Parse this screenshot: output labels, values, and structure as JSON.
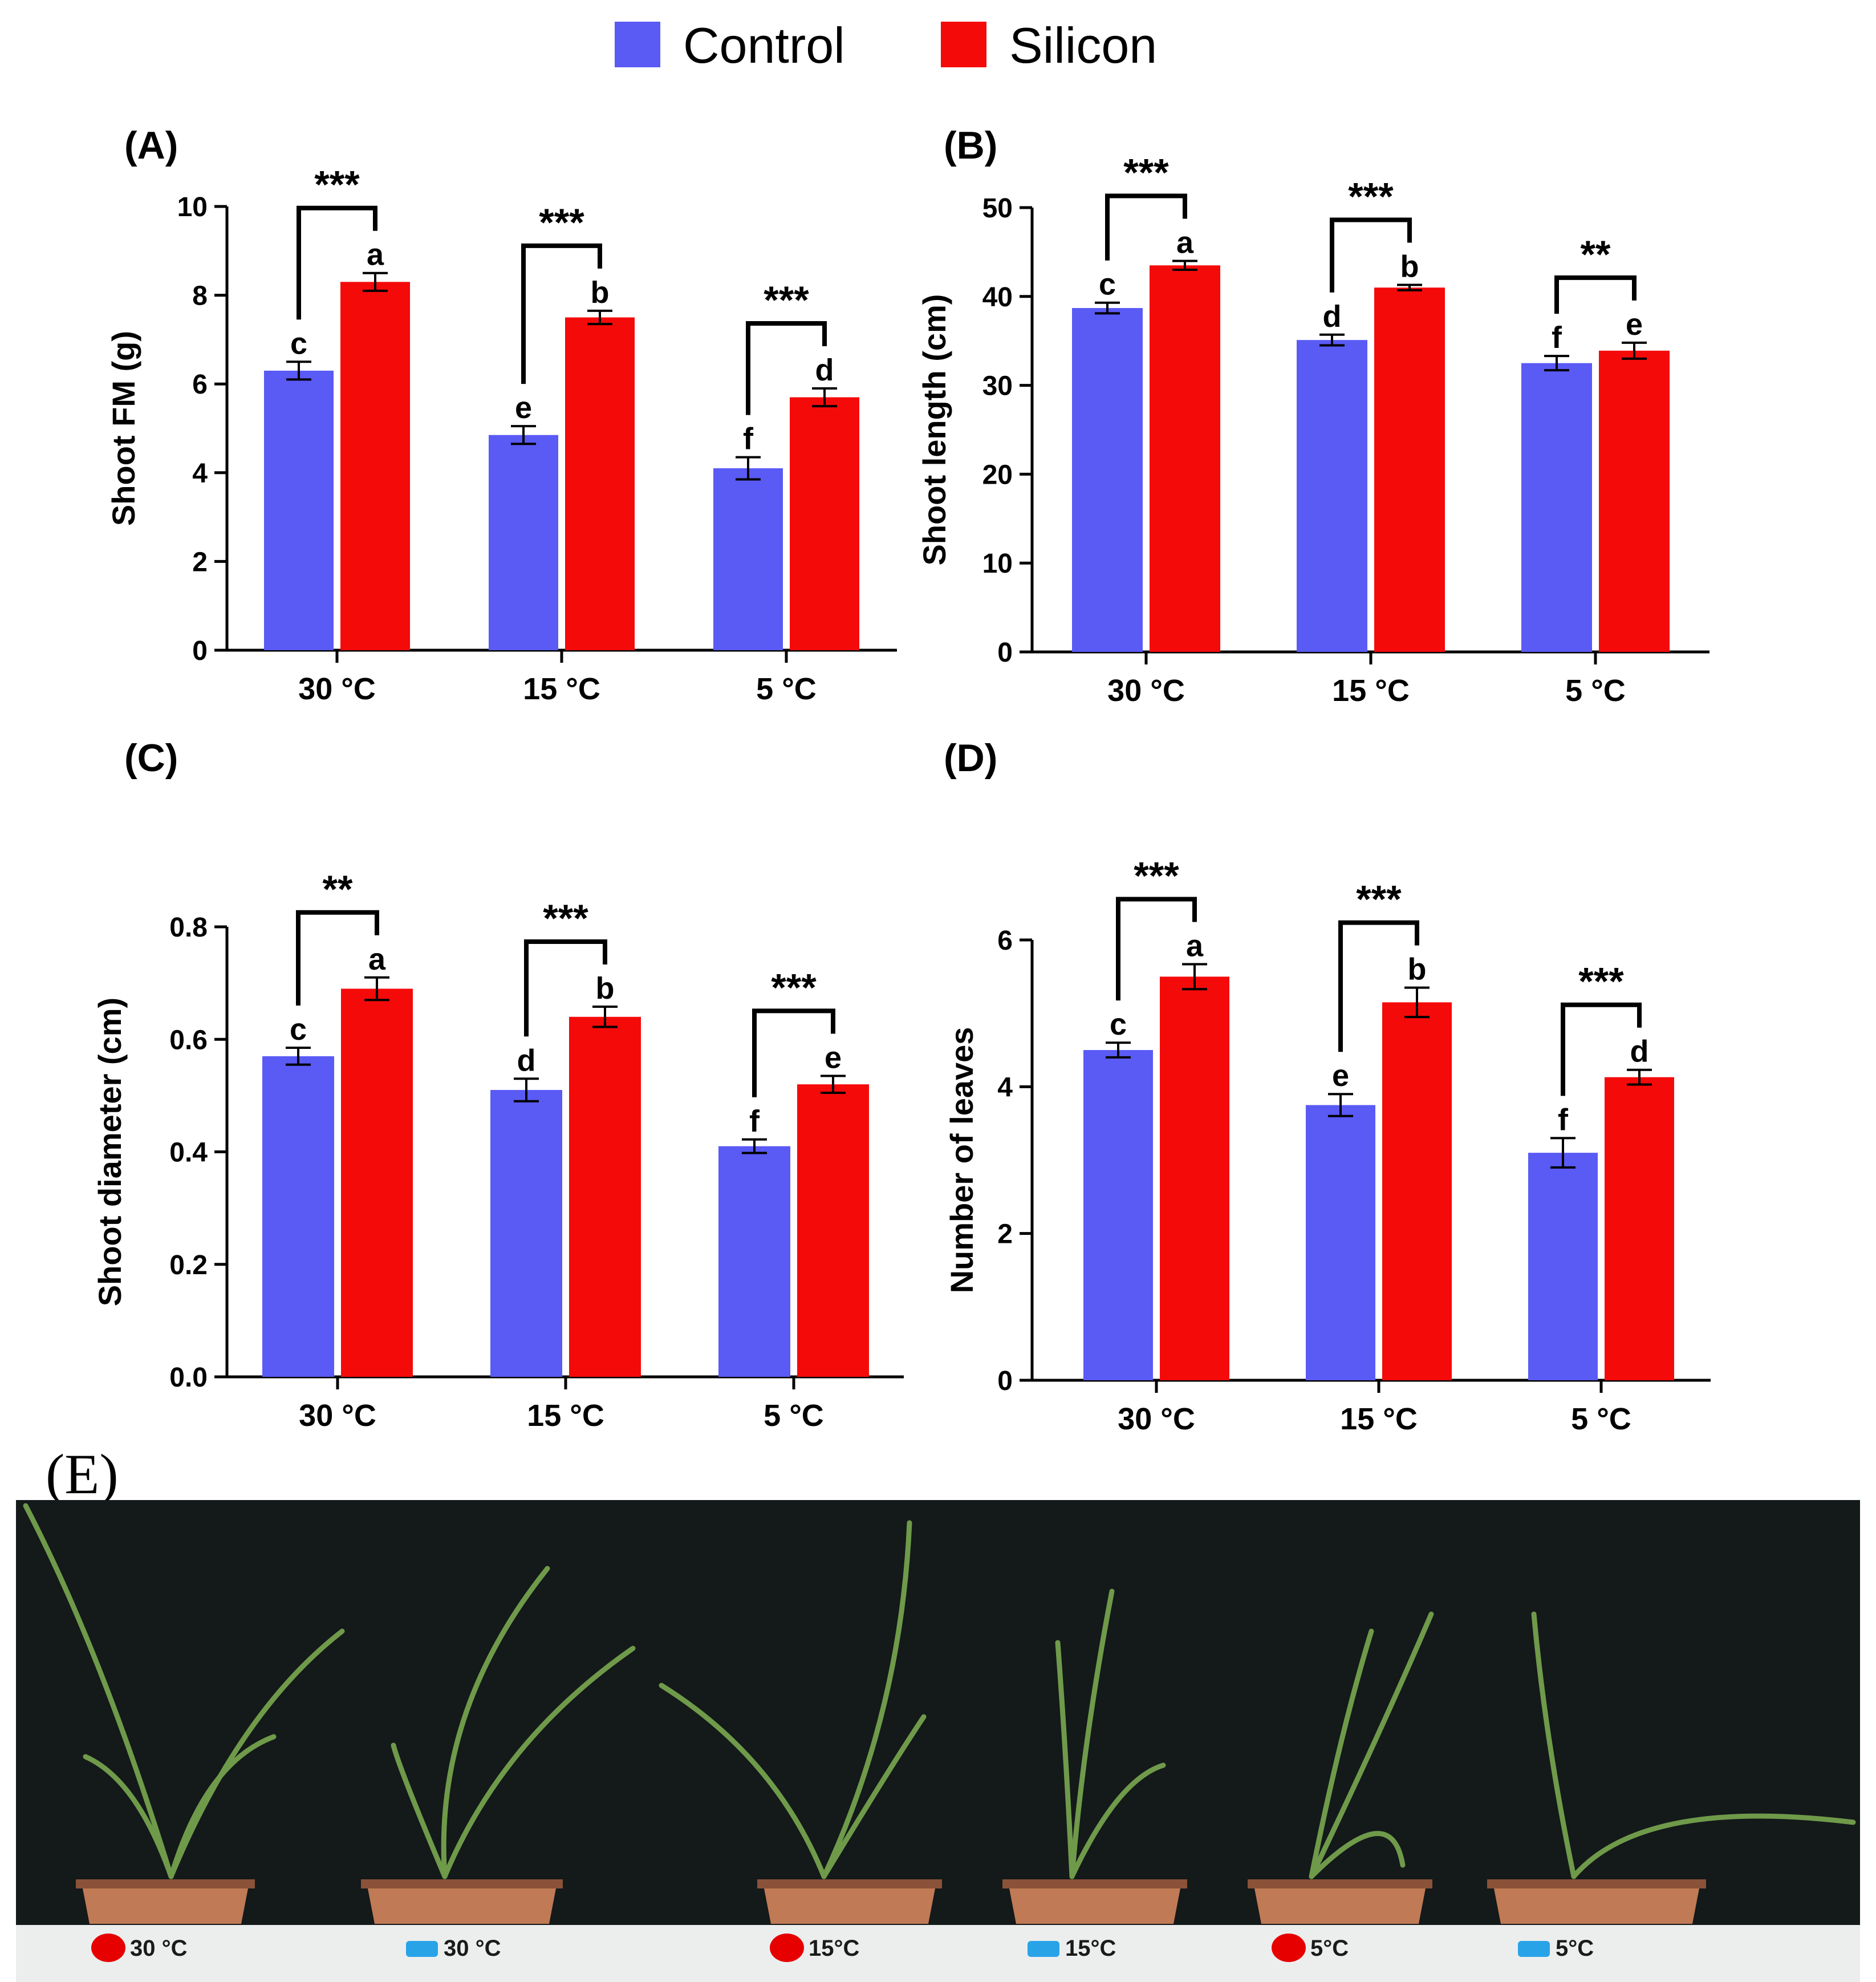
{
  "legend": {
    "items": [
      {
        "name": "Control",
        "color": "#5a5af5"
      },
      {
        "name": "Silicon",
        "color": "#f50a0a"
      }
    ]
  },
  "colors": {
    "control": "#5a5af5",
    "silicon": "#f50a0a",
    "axis": "#000000"
  },
  "chart_data": [
    {
      "panel": "(A)",
      "type": "bar",
      "ylabel": "Shoot FM (g)",
      "categories": [
        "30 °C",
        "15 °C",
        "5 °C"
      ],
      "ylim": [
        0,
        10
      ],
      "yticks": [
        0,
        2,
        4,
        6,
        8,
        10
      ],
      "ytick_labels": [
        "0",
        "2",
        "4",
        "6",
        "8",
        "10"
      ],
      "series": [
        {
          "name": "Control",
          "values": [
            6.3,
            4.85,
            4.1
          ],
          "errors": [
            0.2,
            0.2,
            0.25
          ],
          "letters": [
            "c",
            "e",
            "f"
          ]
        },
        {
          "name": "Silicon",
          "values": [
            8.3,
            7.5,
            5.7
          ],
          "errors": [
            0.2,
            0.15,
            0.2
          ],
          "letters": [
            "a",
            "b",
            "d"
          ]
        }
      ],
      "significance": [
        "***",
        "***",
        "***"
      ]
    },
    {
      "panel": "(B)",
      "type": "bar",
      "ylabel": "Shoot length (cm)",
      "categories": [
        "30 °C",
        "15 °C",
        "5 °C"
      ],
      "ylim": [
        0,
        50
      ],
      "yticks": [
        0,
        10,
        20,
        30,
        40,
        50
      ],
      "ytick_labels": [
        "0",
        "10",
        "20",
        "30",
        "40",
        "50"
      ],
      "series": [
        {
          "name": "Control",
          "values": [
            38.7,
            35.1,
            32.5
          ],
          "errors": [
            0.6,
            0.6,
            0.8
          ],
          "letters": [
            "c",
            "d",
            "f"
          ]
        },
        {
          "name": "Silicon",
          "values": [
            43.5,
            41.0,
            33.9
          ],
          "errors": [
            0.5,
            0.3,
            0.9
          ],
          "letters": [
            "a",
            "b",
            "e"
          ]
        }
      ],
      "significance": [
        "***",
        "***",
        "**"
      ]
    },
    {
      "panel": "(C)",
      "type": "bar",
      "ylabel": "Shoot diameter (cm)",
      "categories": [
        "30 °C",
        "15 °C",
        "5 °C"
      ],
      "ylim": [
        0,
        0.8
      ],
      "yticks": [
        0,
        0.2,
        0.4,
        0.6,
        0.8
      ],
      "ytick_labels": [
        "0.0",
        "0.2",
        "0.4",
        "0.6",
        "0.8"
      ],
      "series": [
        {
          "name": "Control",
          "values": [
            0.57,
            0.51,
            0.41
          ],
          "errors": [
            0.015,
            0.02,
            0.012
          ],
          "letters": [
            "c",
            "d",
            "f"
          ]
        },
        {
          "name": "Silicon",
          "values": [
            0.69,
            0.64,
            0.52
          ],
          "errors": [
            0.02,
            0.018,
            0.015
          ],
          "letters": [
            "a",
            "b",
            "e"
          ]
        }
      ],
      "significance": [
        "**",
        "***",
        "***"
      ]
    },
    {
      "panel": "(D)",
      "type": "bar",
      "ylabel": "Number of leaves",
      "categories": [
        "30 °C",
        "15 °C",
        "5 °C"
      ],
      "ylim": [
        0,
        6
      ],
      "yticks": [
        0,
        2,
        4,
        6
      ],
      "ytick_labels": [
        "0",
        "2",
        "4",
        "6"
      ],
      "series": [
        {
          "name": "Control",
          "values": [
            4.5,
            3.75,
            3.1
          ],
          "errors": [
            0.1,
            0.15,
            0.2
          ],
          "letters": [
            "c",
            "e",
            "f"
          ]
        },
        {
          "name": "Silicon",
          "values": [
            5.5,
            5.15,
            4.13
          ],
          "errors": [
            0.17,
            0.2,
            0.1
          ],
          "letters": [
            "a",
            "b",
            "d"
          ]
        }
      ],
      "significance": [
        "***",
        "***",
        "***"
      ]
    }
  ],
  "photo": {
    "label": "(E)",
    "pots": [
      {
        "label": "30 °C",
        "marker": "silicon"
      },
      {
        "label": "30 °C",
        "marker": "control"
      },
      {
        "label": "15°C",
        "marker": "silicon"
      },
      {
        "label": "15°C",
        "marker": "control"
      },
      {
        "label": "5°C",
        "marker": "silicon"
      },
      {
        "label": "5°C",
        "marker": "control"
      }
    ],
    "colors": {
      "background": "#14191a",
      "pot": "#c07a55",
      "rim": "#8a5238",
      "leaf": "#6f9a4a",
      "silicon_marker": "#e60000",
      "control_marker": "#29a3e8",
      "strip": "#eceeee"
    }
  }
}
